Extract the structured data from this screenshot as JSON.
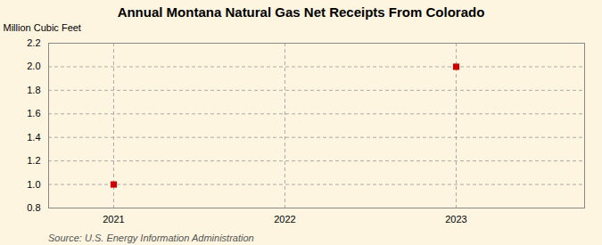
{
  "chart_data": {
    "type": "scatter",
    "title": "Annual Montana Natural Gas Net Receipts From Colorado",
    "ylabel": "Million Cubic Feet",
    "source": "Source: U.S. Energy Information Administration",
    "x": [
      2021,
      2023
    ],
    "values": [
      1.0,
      2.0
    ],
    "color": "#cc0000",
    "marker": "square",
    "xlim": [
      2020.62,
      2023.75
    ],
    "ylim": [
      0.8,
      2.2
    ],
    "xticks": [
      2021,
      2022,
      2023
    ],
    "yticks": [
      0.8,
      {
        "value": 1.0,
        "label": "1.0"
      },
      1.2,
      1.4,
      1.6,
      1.8,
      {
        "value": 2.0,
        "label": "2.0"
      },
      2.2
    ],
    "grid": true
  }
}
